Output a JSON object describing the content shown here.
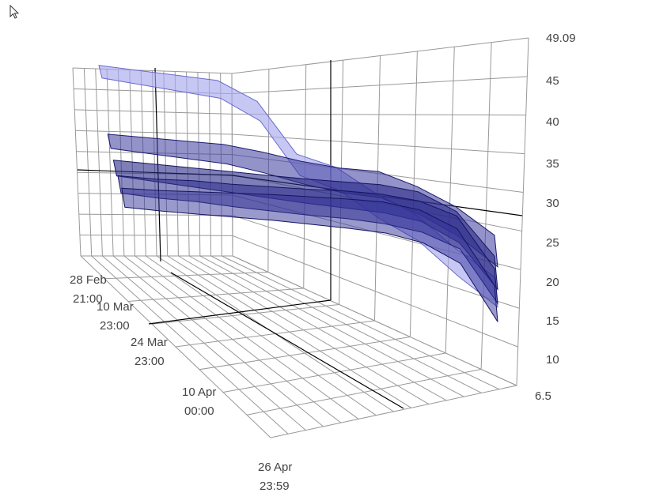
{
  "chart_data": {
    "type": "surface-3d",
    "title": "",
    "xlabel": "",
    "ylabel": "",
    "zlabel": "",
    "grid": true,
    "value_axis": {
      "range": [
        6.5,
        49.09
      ],
      "ticks": [
        "49.09",
        "45",
        "40",
        "35",
        "30",
        "25",
        "20",
        "15",
        "10",
        "6.5"
      ]
    },
    "date_axis": {
      "range": [
        "28 Feb 21:00",
        "26 Apr 23:59"
      ],
      "ticks": [
        {
          "date": "28 Feb",
          "time": "21:00"
        },
        {
          "date": "10 Mar",
          "time": "23:00"
        },
        {
          "date": "24 Mar",
          "time": "23:00"
        },
        {
          "date": "10 Apr",
          "time": "00:00"
        },
        {
          "date": "26 Apr",
          "time": "23:59"
        }
      ]
    },
    "series": [
      {
        "values": [
          45.8,
          45.2,
          44.6,
          44.0,
          41.5,
          35.2,
          33.6,
          30.5,
          28.0,
          24.0,
          20.5
        ]
      },
      {
        "values": [
          38.5,
          38.0,
          37.5,
          37.0,
          36.0,
          34.8,
          33.9,
          33.4,
          31.5,
          29.0,
          25.5
        ]
      },
      {
        "values": [
          36.0,
          35.4,
          34.8,
          34.2,
          33.6,
          33.0,
          32.5,
          32.0,
          31.0,
          28.5,
          23.0
        ]
      },
      {
        "values": [
          34.6,
          34.0,
          33.6,
          33.0,
          32.5,
          32.0,
          31.6,
          31.0,
          30.0,
          28.0,
          21.5
        ]
      },
      {
        "values": [
          33.5,
          33.0,
          32.6,
          32.2,
          31.8,
          31.3,
          30.8,
          30.2,
          29.0,
          26.5,
          19.5
        ]
      }
    ],
    "colors": {
      "surface": "#3a3a9c",
      "surface_light": "#a9a9ee",
      "grid": "#999999",
      "axis": "#000000"
    }
  }
}
